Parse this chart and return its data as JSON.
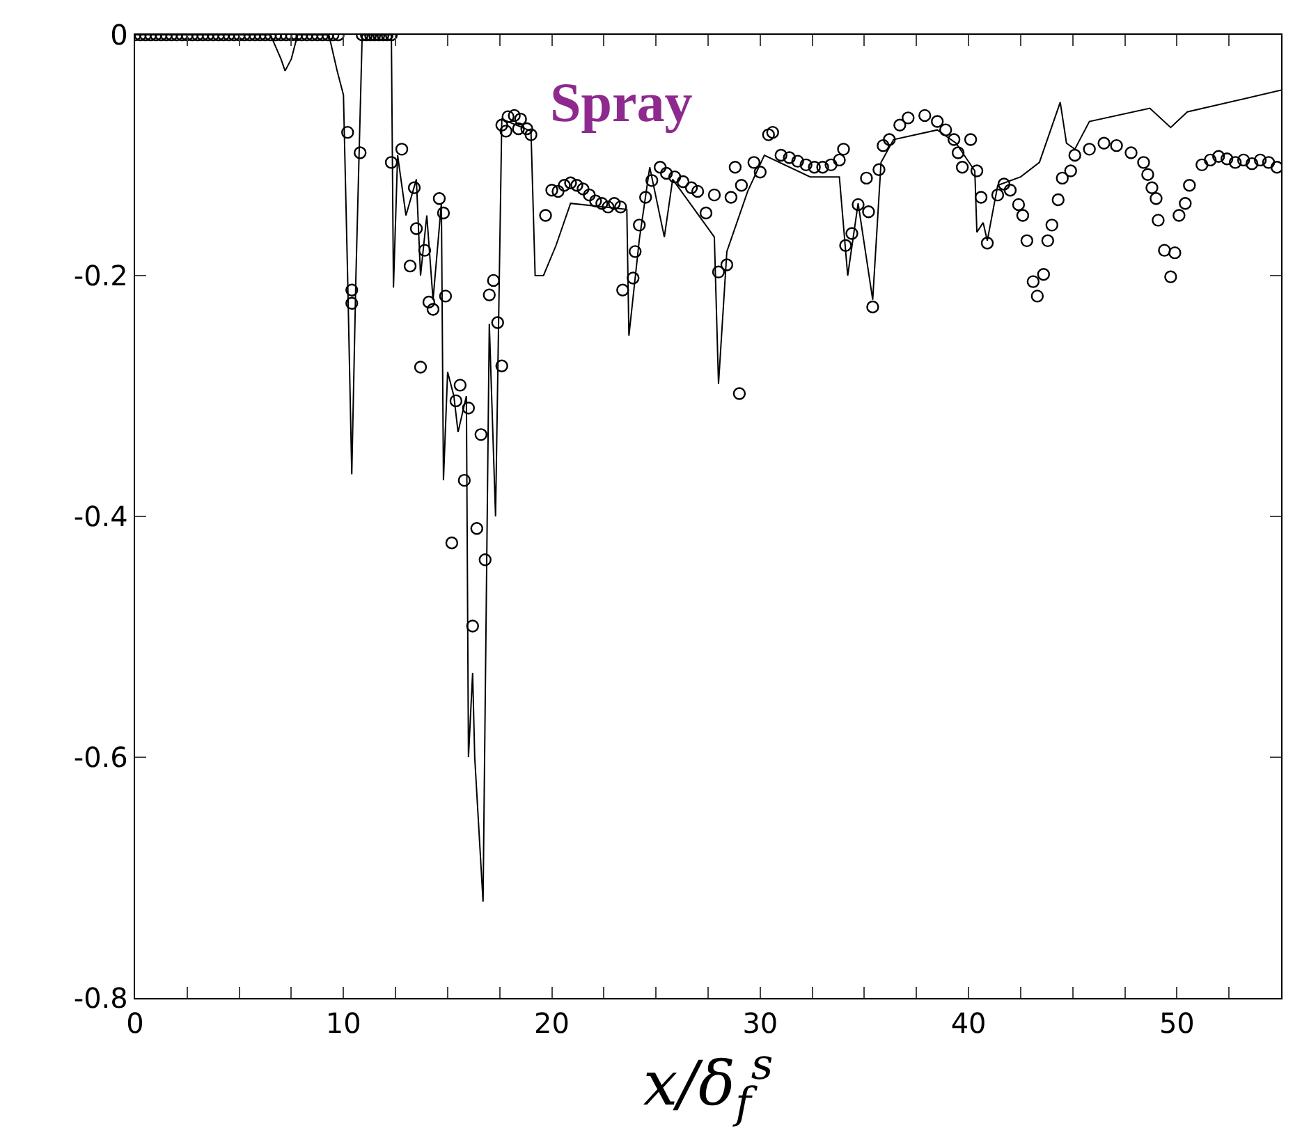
{
  "chart_data": {
    "type": "line",
    "xlabel": "x/δ$_{f}$$^{s}$",
    "annotations": [
      "Spray"
    ],
    "xlim": [
      0,
      55
    ],
    "xticks": [
      0,
      {
        "value": 2.5,
        "label": null
      },
      {
        "value": 5,
        "label": null
      },
      {
        "value": 7.5,
        "label": null
      },
      10,
      {
        "value": 12.5,
        "label": null
      },
      {
        "value": 15,
        "label": null
      },
      {
        "value": 17.5,
        "label": null
      },
      20,
      {
        "value": 22.5,
        "label": null
      },
      {
        "value": 25,
        "label": null
      },
      {
        "value": 27.5,
        "label": null
      },
      30,
      {
        "value": 32.5,
        "label": null
      },
      {
        "value": 35,
        "label": null
      },
      {
        "value": 37.5,
        "label": null
      },
      40,
      {
        "value": 42.5,
        "label": null
      },
      {
        "value": 45,
        "label": null
      },
      {
        "value": 47.5,
        "label": null
      },
      50,
      {
        "value": 52.5,
        "label": null
      }
    ],
    "ylim": [
      -0.8,
      0
    ],
    "yticks": [
      -0.8,
      -0.6,
      -0.4,
      -0.2,
      0
    ],
    "series": [
      {
        "type": "line",
        "color": "#000000",
        "marker": "none",
        "line_style": "solid",
        "x": [
          0,
          6.5,
          7.0,
          7.2,
          7.5,
          7.8,
          9.3,
          9.7,
          10.0,
          10.2,
          10.4,
          10.6,
          10.9,
          12.3,
          12.4,
          12.6,
          13.0,
          13.5,
          13.7,
          14.0,
          14.3,
          14.7,
          14.8,
          15.0,
          15.3,
          15.5,
          15.9,
          16.0,
          16.2,
          16.3,
          16.7,
          17.0,
          17.3,
          17.6,
          19.0,
          19.2,
          19.6,
          20.2,
          20.9,
          23.6,
          23.7,
          24.2,
          24.7,
          25.4,
          25.8,
          27.8,
          28.0,
          28.4,
          29.4,
          30.2,
          32.4,
          33.8,
          34.2,
          34.7,
          35.4,
          35.8,
          36.4,
          38.5,
          39.4,
          40.3,
          40.4,
          40.7,
          40.9,
          41.4,
          42.5,
          43.4,
          44.4,
          44.7,
          45.1,
          45.8,
          48.7,
          49.7,
          50.5,
          55
        ],
        "values": [
          0,
          0,
          -0.02,
          -0.03,
          -0.02,
          0,
          0,
          -0.03,
          -0.05,
          -0.2,
          -0.365,
          -0.2,
          0,
          0,
          -0.21,
          -0.1,
          -0.15,
          -0.12,
          -0.2,
          -0.15,
          -0.22,
          -0.14,
          -0.37,
          -0.28,
          -0.3,
          -0.33,
          -0.3,
          -0.6,
          -0.53,
          -0.6,
          -0.72,
          -0.24,
          -0.4,
          -0.07,
          -0.08,
          -0.2,
          -0.2,
          -0.175,
          -0.14,
          -0.145,
          -0.25,
          -0.17,
          -0.11,
          -0.168,
          -0.12,
          -0.168,
          -0.29,
          -0.18,
          -0.13,
          -0.1,
          -0.118,
          -0.118,
          -0.2,
          -0.14,
          -0.22,
          -0.106,
          -0.087,
          -0.079,
          -0.09,
          -0.113,
          -0.164,
          -0.156,
          -0.171,
          -0.125,
          -0.118,
          -0.106,
          -0.056,
          -0.09,
          -0.095,
          -0.072,
          -0.061,
          -0.077,
          -0.064,
          -0.046
        ]
      },
      {
        "type": "scatter",
        "color": "#000000",
        "marker": "circle",
        "x": [
          0,
          0.25,
          0.5,
          0.75,
          1,
          1.25,
          1.5,
          1.75,
          2,
          2.25,
          2.5,
          2.75,
          3,
          3.25,
          3.5,
          3.75,
          4,
          4.25,
          4.5,
          4.75,
          5,
          5.25,
          5.5,
          5.75,
          6,
          6.25,
          6.5,
          6.75,
          7,
          7.25,
          7.5,
          7.75,
          8,
          8.25,
          8.5,
          8.75,
          9,
          9.25,
          9.5,
          9.75,
          10.9,
          11.1,
          11.3,
          11.5,
          11.7,
          11.9,
          12.1,
          12.3,
          10.2,
          10.8,
          10.4,
          10.4,
          12.3,
          12.8,
          13.4,
          13.2,
          13.5,
          13.9,
          14.1,
          14.3,
          14.6,
          14.8,
          14.9,
          13.7,
          17.2,
          17.0,
          17.4,
          17.6,
          15.6,
          15.4,
          16.0,
          16.6,
          15.8,
          16.4,
          15.2,
          16.8,
          16.2,
          17.6,
          17.9,
          18.2,
          18.5,
          18.8,
          19.0,
          17.8,
          18.4,
          19.7,
          20.0,
          20.3,
          20.6,
          20.9,
          21.2,
          21.5,
          21.8,
          22.1,
          22.4,
          22.7,
          23.0,
          23.3,
          24.0,
          24.2,
          23.9,
          23.4,
          24.5,
          24.8,
          25.2,
          25.5,
          25.9,
          26.3,
          26.7,
          27.0,
          27.4,
          27.8,
          28.0,
          28.4,
          29.0,
          28.6,
          28.8,
          29.1,
          29.7,
          30.0,
          30.4,
          30.6,
          31.0,
          31.4,
          31.8,
          32.2,
          32.6,
          33.0,
          33.4,
          33.8,
          34.0,
          34.4,
          34.1,
          34.7,
          35.2,
          35.4,
          35.1,
          35.7,
          35.9,
          36.2,
          36.7,
          37.1,
          37.9,
          38.5,
          38.9,
          39.3,
          39.5,
          40.1,
          39.7,
          40.4,
          40.6,
          40.9,
          41.4,
          41.7,
          42.0,
          42.4,
          42.6,
          42.8,
          43.1,
          43.3,
          43.6,
          43.8,
          44.0,
          44.3,
          44.5,
          44.9,
          45.1,
          45.8,
          46.5,
          47.1,
          47.8,
          48.4,
          48.6,
          48.8,
          49.0,
          49.1,
          49.4,
          49.7,
          49.9,
          50.1,
          50.4,
          50.6,
          51.2,
          51.6,
          52.0,
          52.4,
          52.8,
          53.2,
          53.6,
          54.0,
          54.4,
          54.8
        ],
        "values": [
          0,
          0,
          0,
          0,
          0,
          0,
          0,
          0,
          0,
          0,
          0,
          0,
          0,
          0,
          0,
          0,
          0,
          0,
          0,
          0,
          0,
          0,
          0,
          0,
          0,
          0,
          0,
          0,
          0,
          0,
          0,
          0,
          0,
          0,
          0,
          0,
          0,
          0,
          0,
          0,
          0,
          0,
          0,
          0,
          0,
          0,
          0,
          0,
          -0.081,
          -0.098,
          -0.212,
          -0.223,
          -0.106,
          -0.095,
          -0.127,
          -0.192,
          -0.161,
          -0.179,
          -0.222,
          -0.228,
          -0.136,
          -0.148,
          -0.217,
          -0.276,
          -0.204,
          -0.216,
          -0.239,
          -0.275,
          -0.291,
          -0.304,
          -0.31,
          -0.332,
          -0.37,
          -0.41,
          -0.422,
          -0.436,
          -0.491,
          -0.075,
          -0.068,
          -0.067,
          -0.07,
          -0.078,
          -0.083,
          -0.08,
          -0.078,
          -0.15,
          -0.129,
          -0.13,
          -0.125,
          -0.123,
          -0.125,
          -0.128,
          -0.133,
          -0.138,
          -0.14,
          -0.143,
          -0.14,
          -0.143,
          -0.18,
          -0.158,
          -0.202,
          -0.212,
          -0.135,
          -0.121,
          -0.11,
          -0.115,
          -0.118,
          -0.122,
          -0.127,
          -0.13,
          -0.148,
          -0.133,
          -0.197,
          -0.191,
          -0.298,
          -0.135,
          -0.11,
          -0.125,
          -0.106,
          -0.114,
          -0.083,
          -0.081,
          -0.1,
          -0.102,
          -0.105,
          -0.108,
          -0.11,
          -0.11,
          -0.108,
          -0.104,
          -0.095,
          -0.165,
          -0.175,
          -0.141,
          -0.147,
          -0.226,
          -0.119,
          -0.112,
          -0.092,
          -0.087,
          -0.075,
          -0.069,
          -0.067,
          -0.072,
          -0.079,
          -0.087,
          -0.098,
          -0.087,
          -0.11,
          -0.113,
          -0.135,
          -0.173,
          -0.133,
          -0.124,
          -0.129,
          -0.141,
          -0.15,
          -0.171,
          -0.205,
          -0.217,
          -0.199,
          -0.171,
          -0.158,
          -0.137,
          -0.119,
          -0.113,
          -0.1,
          -0.095,
          -0.09,
          -0.092,
          -0.098,
          -0.106,
          -0.116,
          -0.127,
          -0.136,
          -0.154,
          -0.179,
          -0.201,
          -0.181,
          -0.15,
          -0.14,
          -0.125,
          -0.108,
          -0.104,
          -0.101,
          -0.103,
          -0.106,
          -0.104,
          -0.107,
          -0.104,
          -0.106,
          -0.11
        ]
      }
    ]
  }
}
